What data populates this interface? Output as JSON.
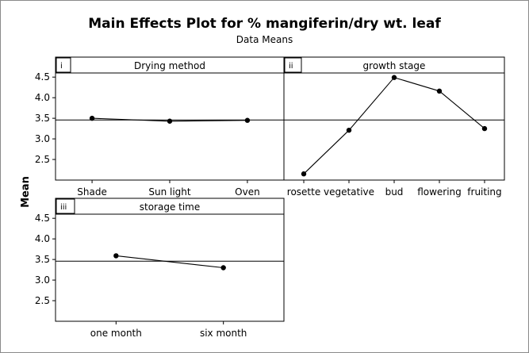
{
  "title": "Main Effects Plot for % mangiferin/dry wt. leaf",
  "subtitle": "Data Means",
  "ylabel": "Mean",
  "chart_data": {
    "type": "line",
    "title": "Main Effects Plot for % mangiferin/dry wt. leaf",
    "subtitle": "Data Means",
    "ylabel": "Mean",
    "ylim": [
      2.0,
      4.6
    ],
    "yticks": [
      2.5,
      3.0,
      3.5,
      4.0,
      4.5
    ],
    "ytick_labels": [
      "2.5",
      "3.0",
      "3.5",
      "4.0",
      "4.5"
    ],
    "overall_mean": 3.46,
    "panels": [
      {
        "id": "i",
        "label": "Drying method",
        "categories": [
          "Shade",
          "Sun light",
          "Oven"
        ],
        "values": [
          3.5,
          3.43,
          3.45
        ]
      },
      {
        "id": "ii",
        "label": "growth stage",
        "categories": [
          "rosette",
          "vegetative",
          "bud",
          "flowering",
          "fruiting"
        ],
        "values": [
          2.15,
          3.21,
          4.49,
          4.16,
          3.25
        ]
      },
      {
        "id": "iii",
        "label": "storage time",
        "categories": [
          "one month",
          "six month"
        ],
        "values": [
          3.59,
          3.3
        ]
      }
    ]
  }
}
